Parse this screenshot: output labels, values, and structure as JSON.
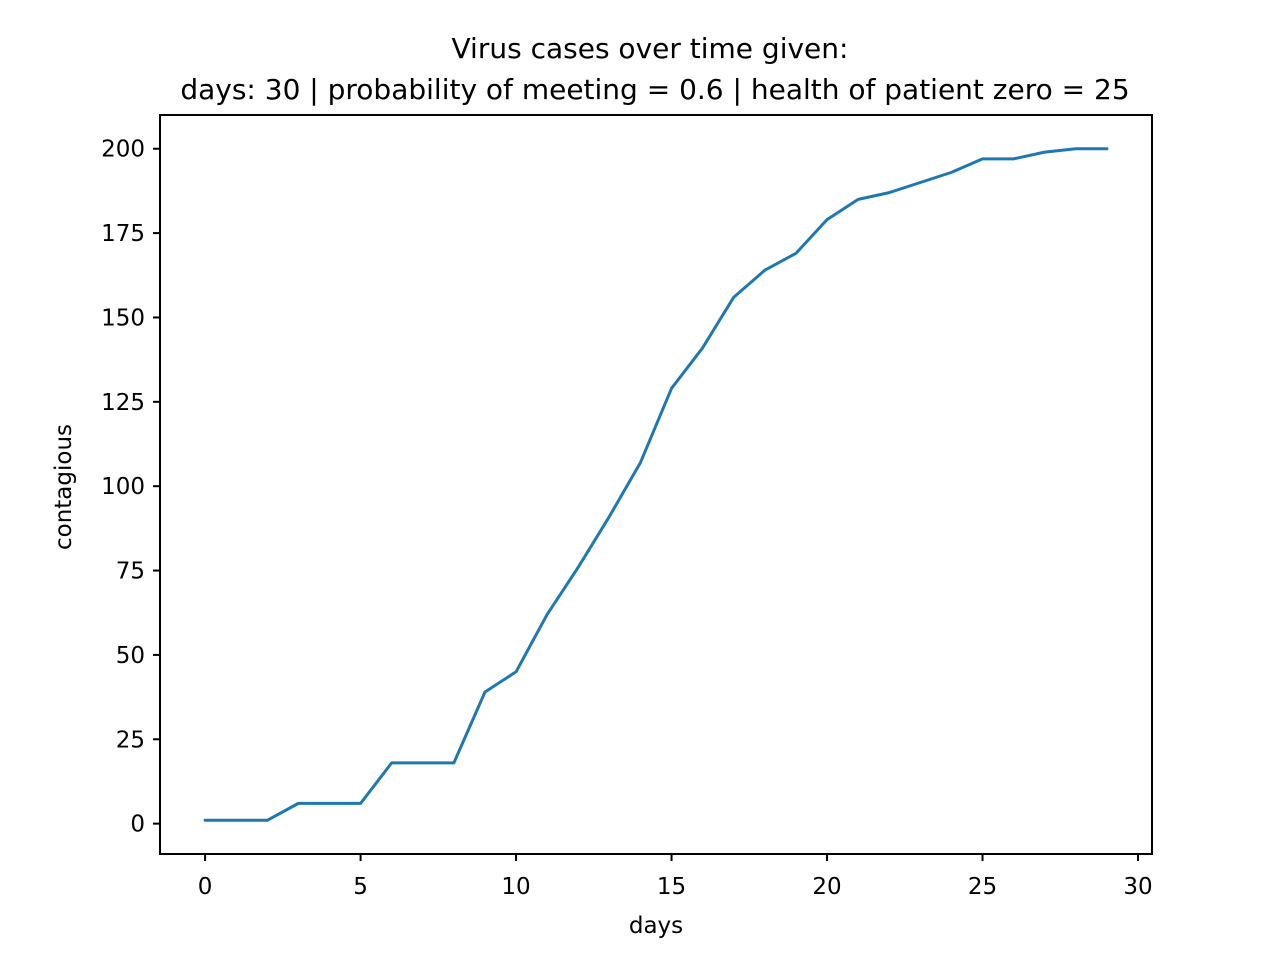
{
  "chart_data": {
    "type": "line",
    "title": "Virus cases over time given:",
    "subtitle": "days: 30 | probability of meeting = 0.6 | health of patient zero = 25",
    "xlabel": "days",
    "ylabel": "contagious",
    "xlim": [
      -1.45,
      30.45
    ],
    "ylim": [
      -9,
      210
    ],
    "xticks": [
      0,
      5,
      10,
      15,
      20,
      25,
      30
    ],
    "xtick_labels": [
      "0",
      "5",
      "10",
      "15",
      "20",
      "25",
      "30"
    ],
    "yticks": [
      0,
      25,
      50,
      75,
      100,
      125,
      150,
      175,
      200
    ],
    "ytick_labels": [
      "0",
      "25",
      "50",
      "75",
      "100",
      "125",
      "150",
      "175",
      "200"
    ],
    "grid": false,
    "series": [
      {
        "color": "#1f77b4",
        "x": [
          0,
          1,
          2,
          3,
          4,
          5,
          6,
          7,
          8,
          9,
          10,
          11,
          12,
          13,
          14,
          15,
          16,
          17,
          18,
          19,
          20,
          21,
          22,
          23,
          24,
          25,
          26,
          27,
          28,
          29
        ],
        "y": [
          1,
          1,
          1,
          6,
          6,
          6,
          18,
          18,
          18,
          39,
          45,
          62,
          76,
          91,
          107,
          129,
          141,
          156,
          164,
          169,
          179,
          185,
          187,
          190,
          193,
          197,
          197,
          199,
          200,
          200
        ]
      }
    ]
  }
}
